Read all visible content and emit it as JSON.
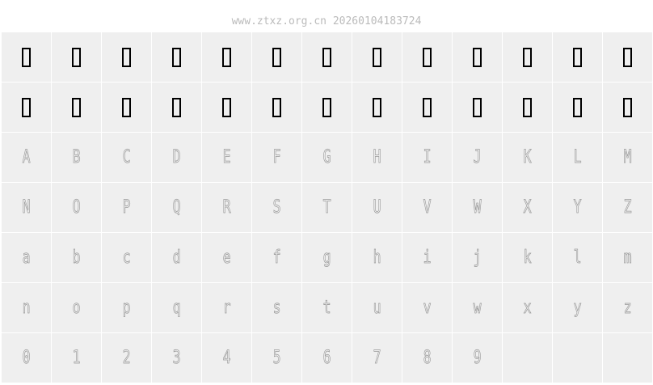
{
  "header": {
    "text": "www.ztxz.org.cn 20260104183724"
  },
  "colors": {
    "cell_bg": "#efefef",
    "glyph_outline": "#999999",
    "missing_glyph": "#000000"
  },
  "grid": {
    "missing_glyph_cells": 26,
    "rows": [
      [
        "A",
        "B",
        "C",
        "D",
        "E",
        "F",
        "G",
        "H",
        "I",
        "J",
        "K",
        "L",
        "M"
      ],
      [
        "N",
        "O",
        "P",
        "Q",
        "R",
        "S",
        "T",
        "U",
        "V",
        "W",
        "X",
        "Y",
        "Z"
      ],
      [
        "a",
        "b",
        "c",
        "d",
        "e",
        "f",
        "g",
        "h",
        "i",
        "j",
        "k",
        "l",
        "m"
      ],
      [
        "n",
        "o",
        "p",
        "q",
        "r",
        "s",
        "t",
        "u",
        "v",
        "w",
        "x",
        "y",
        "z"
      ],
      [
        "0",
        "1",
        "2",
        "3",
        "4",
        "5",
        "6",
        "7",
        "8",
        "9",
        "",
        "",
        ""
      ]
    ]
  }
}
